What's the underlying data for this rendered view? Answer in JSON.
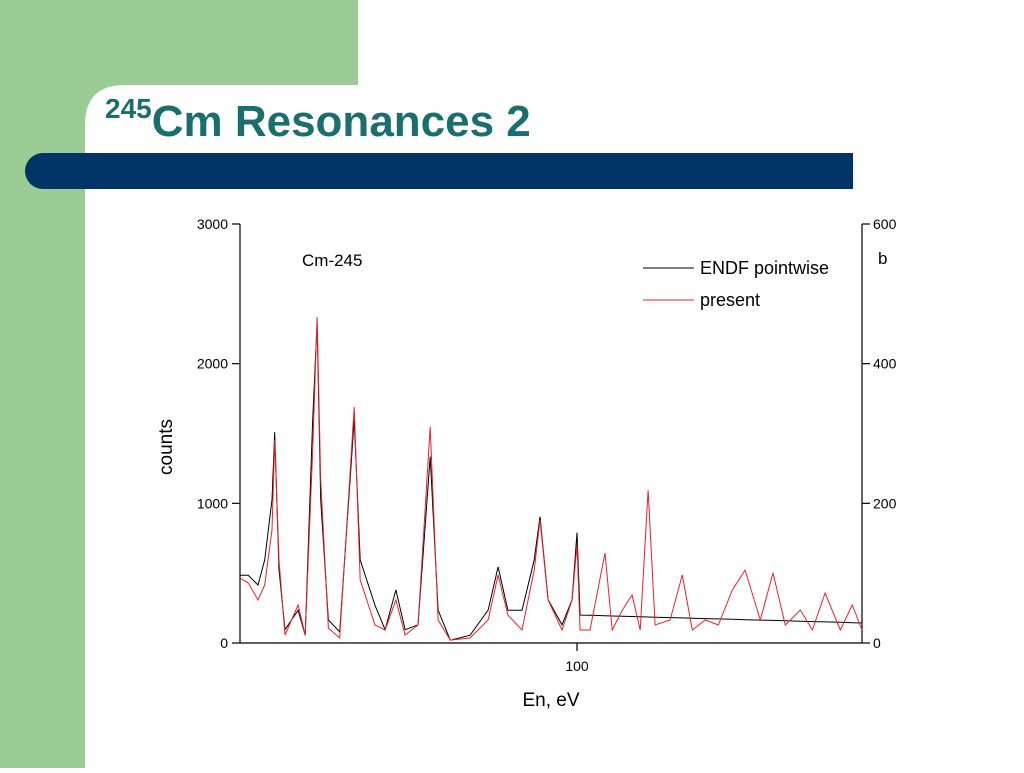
{
  "slide": {
    "title_superscript": "245",
    "title": "Cm Resonances 2"
  },
  "chart_data": {
    "type": "line",
    "annotation": "Cm-245",
    "x_label": "En, eV",
    "y_label": "counts",
    "y2_label": "b",
    "x_log": true,
    "xlim": [
      20,
      390
    ],
    "xticks": [
      100
    ],
    "ylim": [
      0,
      3000
    ],
    "yticks": [
      0,
      1000,
      2000,
      3000
    ],
    "y2lim": [
      0,
      600
    ],
    "y2ticks": [
      0,
      200,
      400,
      600
    ],
    "x": [
      20,
      20.8,
      21.8,
      22.5,
      23.3,
      23.6,
      24.1,
      24.8,
      26.4,
      27.3,
      28.3,
      28.9,
      29.4,
      30.5,
      32.2,
      34.5,
      35.5,
      38.1,
      40,
      42.1,
      44,
      46.8,
      49.6,
      51.5,
      54.6,
      60,
      65.4,
      68.6,
      71.9,
      76.9,
      81.5,
      83.8,
      87.1,
      93.1,
      97.7,
      100,
      101.5,
      106.4,
      114.3,
      118.3,
      124.2,
      130.1,
      135.2,
      140.4,
      145.2,
      156,
      165.3,
      173.4,
      184.4,
      196.4,
      209.9,
      223.2,
      240,
      255,
      270.4,
      290.5,
      307.7,
      327,
      351.6,
      372.4,
      390
    ],
    "series": [
      {
        "name": "ENDF pointwise",
        "color": "#000000",
        "axis": "y2",
        "values": [
          97,
          97,
          83,
          119,
          205,
          302,
          105,
          19,
          47,
          11,
          320,
          459,
          205,
          33,
          16,
          320,
          119,
          54,
          19,
          76,
          19,
          26,
          267,
          47,
          4,
          11,
          47,
          109,
          47,
          47,
          119,
          181,
          62,
          26,
          62,
          158,
          40,
          39.6,
          39,
          38.7,
          38.3,
          37.9,
          37.6,
          37.3,
          37,
          36.4,
          35.9,
          35.5,
          35,
          34.5,
          33.9,
          33.4,
          32.8,
          32.3,
          31.8,
          31.2,
          30.7,
          30.2,
          29.6,
          29.1,
          28.7
        ]
      },
      {
        "name": "present",
        "color": "#e8212b",
        "values": [
          465,
          430,
          308,
          415,
          809,
          1453,
          594,
          57,
          272,
          57,
          1382,
          2334,
          1167,
          107,
          36,
          1690,
          451,
          129,
          93,
          308,
          57,
          129,
          1547,
          165,
          21,
          36,
          165,
          487,
          200,
          93,
          523,
          881,
          308,
          93,
          308,
          702,
          93,
          93,
          644,
          93,
          236,
          344,
          93,
          1095,
          129,
          165,
          487,
          93,
          165,
          129,
          379,
          523,
          165,
          501,
          129,
          236,
          93,
          358,
          93,
          272,
          93
        ]
      }
    ]
  }
}
